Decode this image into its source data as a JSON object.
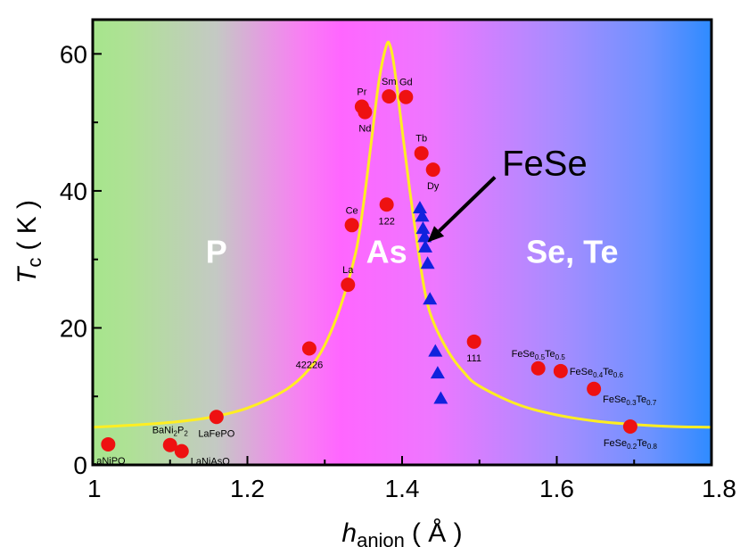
{
  "chart_data": {
    "type": "scatter",
    "xlabel": {
      "main": "h",
      "sub": "anion",
      "unit": "( Å )"
    },
    "ylabel": {
      "main": "T",
      "sub": "c",
      "unit": "( K )"
    },
    "xlim": [
      1.0,
      1.8
    ],
    "ylim": [
      0,
      65
    ],
    "x_ticks": [
      "1",
      "1.2",
      "1.4",
      "1.6",
      "1.8"
    ],
    "y_ticks": [
      "0",
      "20",
      "40",
      "60"
    ],
    "grid": false,
    "background_gradient": [
      "#a6e58c",
      "#ff66ff",
      "#2e8bff"
    ],
    "regions": [
      {
        "label": "P",
        "x": 1.16,
        "y": 29.5
      },
      {
        "label": "As",
        "x": 1.38,
        "y": 29.5
      },
      {
        "label": "Se, Te",
        "x": 1.62,
        "y": 29.5
      }
    ],
    "curve": {
      "color": "#ffee22",
      "points": [
        [
          1.0,
          5.5
        ],
        [
          1.05,
          5.8
        ],
        [
          1.1,
          6.2
        ],
        [
          1.15,
          6.9
        ],
        [
          1.2,
          8.3
        ],
        [
          1.25,
          11.0
        ],
        [
          1.28,
          14.0
        ],
        [
          1.3,
          17.5
        ],
        [
          1.32,
          23.0
        ],
        [
          1.34,
          31.0
        ],
        [
          1.35,
          38.0
        ],
        [
          1.36,
          47.0
        ],
        [
          1.37,
          56.0
        ],
        [
          1.38,
          61.3
        ],
        [
          1.385,
          61.0
        ],
        [
          1.39,
          58.0
        ],
        [
          1.4,
          49.0
        ],
        [
          1.41,
          40.0
        ],
        [
          1.42,
          32.0
        ],
        [
          1.43,
          25.0
        ],
        [
          1.44,
          21.0
        ],
        [
          1.46,
          16.5
        ],
        [
          1.48,
          13.5
        ],
        [
          1.5,
          11.5
        ],
        [
          1.55,
          8.8
        ],
        [
          1.6,
          7.3
        ],
        [
          1.65,
          6.4
        ],
        [
          1.7,
          5.9
        ],
        [
          1.75,
          5.6
        ],
        [
          1.8,
          5.5
        ]
      ]
    },
    "series": [
      {
        "marker": "circle",
        "color": "#ee1111",
        "points": [
          {
            "x": 1.02,
            "y": 3.0,
            "label": "LaNiPO",
            "pos": "below"
          },
          {
            "x": 1.1,
            "y": 2.9,
            "label": "BaNi",
            "sub": "2",
            "label2": "P",
            "sub2": "2",
            "pos": "above"
          },
          {
            "x": 1.115,
            "y": 2.0,
            "label": "LaNiAsO",
            "pos": "right-below"
          },
          {
            "x": 1.16,
            "y": 7.0,
            "label": "LaFePO",
            "pos": "below"
          },
          {
            "x": 1.28,
            "y": 17.0,
            "label": "42226",
            "pos": "below"
          },
          {
            "x": 1.33,
            "y": 26.3,
            "label": "La",
            "pos": "above"
          },
          {
            "x": 1.335,
            "y": 35.0,
            "label": "Ce",
            "pos": "above"
          },
          {
            "x": 1.348,
            "y": 52.3,
            "label": "Pr",
            "pos": "above"
          },
          {
            "x": 1.352,
            "y": 51.5,
            "label": "Nd",
            "pos": "below"
          },
          {
            "x": 1.38,
            "y": 38.0,
            "label": "122",
            "pos": "below"
          },
          {
            "x": 1.383,
            "y": 53.8,
            "label": "Sm",
            "pos": "above"
          },
          {
            "x": 1.405,
            "y": 53.7,
            "label": "Gd",
            "pos": "above"
          },
          {
            "x": 1.425,
            "y": 45.5,
            "label": "Tb",
            "pos": "above"
          },
          {
            "x": 1.44,
            "y": 43.1,
            "label": "Dy",
            "pos": "below"
          },
          {
            "x": 1.493,
            "y": 18.0,
            "label": "111",
            "pos": "below"
          },
          {
            "x": 1.576,
            "y": 14.1,
            "label": "FeSe",
            "sub": "0.5",
            "label2": "Te",
            "sub2": "0.5",
            "pos": "above"
          },
          {
            "x": 1.605,
            "y": 13.7,
            "label": "FeSe",
            "sub": "0.4",
            "label2": "Te",
            "sub2": "0.6",
            "pos": "right"
          },
          {
            "x": 1.648,
            "y": 11.1,
            "label": "FeSe",
            "sub": "0.3",
            "label2": "Te",
            "sub2": "0.7",
            "pos": "right-below"
          },
          {
            "x": 1.695,
            "y": 5.6,
            "label": "FeSe",
            "sub": "0.2",
            "label2": "Te",
            "sub2": "0.8",
            "pos": "below"
          }
        ]
      },
      {
        "marker": "triangle",
        "color": "#1122dd",
        "label": "FeSe",
        "points": [
          {
            "x": 1.423,
            "y": 37.5
          },
          {
            "x": 1.426,
            "y": 36.3
          },
          {
            "x": 1.427,
            "y": 34.5
          },
          {
            "x": 1.429,
            "y": 33.3
          },
          {
            "x": 1.43,
            "y": 31.8
          },
          {
            "x": 1.433,
            "y": 29.4
          },
          {
            "x": 1.436,
            "y": 24.2
          },
          {
            "x": 1.443,
            "y": 16.6
          },
          {
            "x": 1.446,
            "y": 13.4
          },
          {
            "x": 1.45,
            "y": 9.7
          }
        ]
      }
    ],
    "annotation": {
      "text": "FeSe",
      "arrow_from": [
        1.52,
        42.0
      ],
      "arrow_to": [
        1.433,
        32.5
      ]
    }
  }
}
